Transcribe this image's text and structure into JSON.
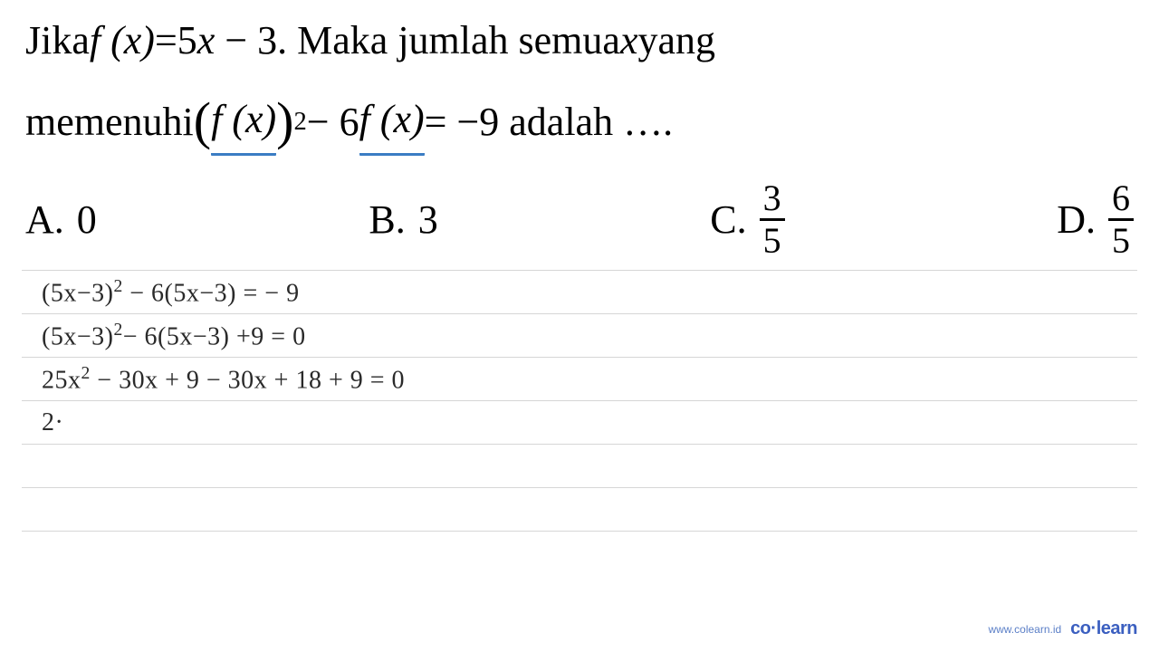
{
  "question": {
    "line1_pre": "Jika ",
    "fx_expr_lhs": "f (x)",
    "eq": " = ",
    "fx_expr_rhs": "5x − 3",
    "line1_post": ". Maka jumlah semua ",
    "var": "x",
    "line1_end": " yang",
    "line2_pre": "memenuhi ",
    "open_paren": "(",
    "fx_inner": "f (x)",
    "close_paren": ")",
    "exp": "2",
    "minus": " − 6",
    "fx2": "f (x)",
    "eq2": " = −9 adalah ….",
    "underline_color": "#3b7dc4"
  },
  "options": {
    "a_label": "A.",
    "a_val": "0",
    "b_label": "B.",
    "b_val": "3",
    "c_label": "C.",
    "c_num": "3",
    "c_den": "5",
    "d_label": "D.",
    "d_num": "6",
    "d_den": "5"
  },
  "work": {
    "line1_a": "(5x−3)",
    "line1_exp": "2",
    "line1_b": " − 6(5x−3)  = − 9",
    "line2_a": "(5x−3)",
    "line2_exp": "2",
    "line2_b": "− 6(5x−3) +9 = 0",
    "line3_a": "25x",
    "line3_exp": "2",
    "line3_b": " − 30x + 9 − 30x + 18 + 9 = 0",
    "line4": "2·",
    "handwriting_color": "#2a2a2a",
    "rule_color": "#d6d6d6"
  },
  "footer": {
    "url": "www.colearn.id",
    "logo_pre": "co",
    "logo_dot": "·",
    "logo_post": "learn",
    "color": "#3b5fc0"
  },
  "colors": {
    "background": "#ffffff",
    "text": "#000000"
  }
}
